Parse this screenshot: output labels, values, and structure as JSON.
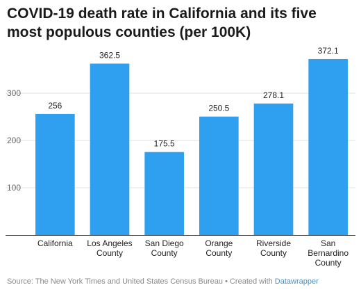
{
  "chart_data": {
    "type": "bar",
    "title": "COVID-19 death rate in California and its five most populous counties (per 100K)",
    "categories": [
      [
        "California"
      ],
      [
        "Los Angeles",
        "County"
      ],
      [
        "San Diego",
        "County"
      ],
      [
        "Orange",
        "County"
      ],
      [
        "Riverside",
        "County"
      ],
      [
        "San",
        "Bernardino",
        "County"
      ]
    ],
    "values": [
      256,
      362.5,
      175.5,
      250.5,
      278.1,
      372.1
    ],
    "value_labels": [
      "256",
      "362.5",
      "175.5",
      "250.5",
      "278.1",
      "372.1"
    ],
    "yticks": [
      100,
      200,
      300
    ],
    "ylim": [
      0,
      400
    ],
    "grid": true,
    "bar_color": "#2ea0ef",
    "grid_color": "#e2e2e2",
    "xlabel": "",
    "ylabel": ""
  },
  "footer": {
    "source_text": "Source: The New York Times and United States Census Bureau • Created with ",
    "tool_name": "Datawrapper"
  }
}
